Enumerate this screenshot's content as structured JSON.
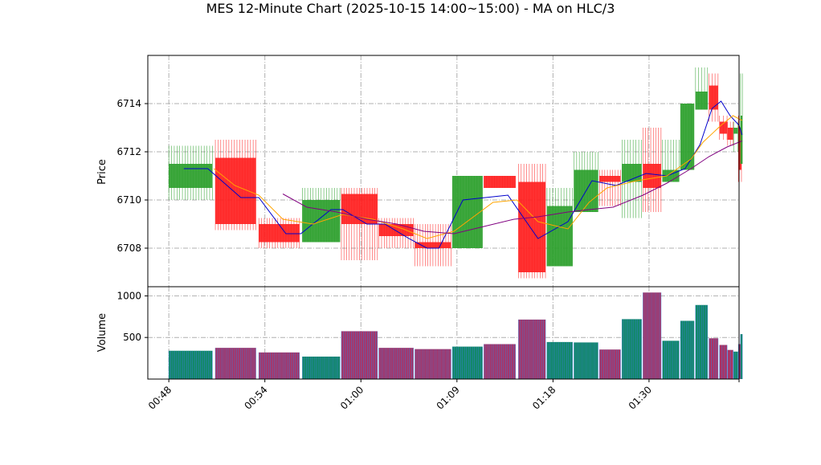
{
  "chart_data": {
    "type": "candlestick",
    "title": "MES 12-Minute Chart (2025-10-15 14:00~15:00) - MA on HLC/3",
    "price_panel": {
      "ylabel": "Price",
      "ylim": [
        6706.4,
        6716.0
      ],
      "yticks": [
        6708,
        6710,
        6712,
        6714
      ],
      "grid": true
    },
    "volume_panel": {
      "ylabel": "Volume",
      "ylim": [
        0,
        1110
      ],
      "yticks": [
        500,
        1000
      ],
      "grid": true
    },
    "x_axis": {
      "xlim": [
        -0.7,
        19.0
      ],
      "ticks": [
        {
          "label": "00:48",
          "pos": 0
        },
        {
          "label": "00:54",
          "pos": 3.2
        },
        {
          "label": "01:00",
          "pos": 6.4
        },
        {
          "label": "01:09",
          "pos": 9.6
        },
        {
          "label": "01:18",
          "pos": 12.8
        },
        {
          "label": "01:30",
          "pos": 16.0
        },
        {
          "label": "",
          "pos": 19.0
        }
      ]
    },
    "candles": [
      {
        "x": 0.0,
        "w": 1.45,
        "open": 6710.5,
        "high": 6712.25,
        "low": 6710.0,
        "close": 6711.5,
        "volume": 340
      },
      {
        "x": 1.55,
        "w": 1.35,
        "open": 6711.75,
        "high": 6712.5,
        "low": 6708.75,
        "close": 6709.0,
        "volume": 375
      },
      {
        "x": 3.0,
        "w": 1.35,
        "open": 6709.0,
        "high": 6709.25,
        "low": 6708.0,
        "close": 6708.25,
        "volume": 320
      },
      {
        "x": 4.45,
        "w": 1.25,
        "open": 6708.25,
        "high": 6710.5,
        "low": 6708.25,
        "close": 6710.0,
        "volume": 270
      },
      {
        "x": 5.75,
        "w": 1.2,
        "open": 6710.25,
        "high": 6710.5,
        "low": 6707.5,
        "close": 6709.0,
        "volume": 575
      },
      {
        "x": 7.0,
        "w": 1.15,
        "open": 6709.0,
        "high": 6709.25,
        "low": 6708.0,
        "close": 6708.5,
        "volume": 375
      },
      {
        "x": 8.2,
        "w": 1.2,
        "open": 6708.25,
        "high": 6709.0,
        "low": 6707.25,
        "close": 6708.0,
        "volume": 360
      },
      {
        "x": 9.45,
        "w": 1.0,
        "open": 6708.0,
        "high": 6711.0,
        "low": 6708.0,
        "close": 6711.0,
        "volume": 390
      },
      {
        "x": 10.5,
        "w": 1.05,
        "open": 6711.0,
        "high": 6711.0,
        "low": 6710.5,
        "close": 6710.5,
        "volume": 420
      },
      {
        "x": 11.65,
        "w": 0.9,
        "open": 6710.75,
        "high": 6711.5,
        "low": 6706.75,
        "close": 6707.0,
        "volume": 715
      },
      {
        "x": 12.6,
        "w": 0.85,
        "open": 6707.25,
        "high": 6710.5,
        "low": 6707.25,
        "close": 6709.75,
        "volume": 445
      },
      {
        "x": 13.5,
        "w": 0.8,
        "open": 6709.5,
        "high": 6712.0,
        "low": 6709.5,
        "close": 6711.25,
        "volume": 440
      },
      {
        "x": 14.35,
        "w": 0.7,
        "open": 6711.0,
        "high": 6711.25,
        "low": 6709.75,
        "close": 6710.75,
        "volume": 355
      },
      {
        "x": 15.1,
        "w": 0.65,
        "open": 6710.75,
        "high": 6712.5,
        "low": 6709.25,
        "close": 6711.5,
        "volume": 720
      },
      {
        "x": 15.8,
        "w": 0.6,
        "open": 6711.5,
        "high": 6713.0,
        "low": 6709.5,
        "close": 6710.5,
        "volume": 1040
      },
      {
        "x": 16.45,
        "w": 0.55,
        "open": 6710.75,
        "high": 6712.5,
        "low": 6710.75,
        "close": 6711.25,
        "volume": 460
      },
      {
        "x": 17.05,
        "w": 0.45,
        "open": 6711.25,
        "high": 6714.0,
        "low": 6711.25,
        "close": 6714.0,
        "volume": 700
      },
      {
        "x": 17.55,
        "w": 0.4,
        "open": 6713.75,
        "high": 6715.5,
        "low": 6713.75,
        "close": 6714.5,
        "volume": 890
      },
      {
        "x": 18.0,
        "w": 0.3,
        "open": 6714.75,
        "high": 6715.25,
        "low": 6713.25,
        "close": 6713.75,
        "volume": 490
      },
      {
        "x": 18.35,
        "w": 0.25,
        "open": 6713.25,
        "high": 6713.5,
        "low": 6712.5,
        "close": 6712.75,
        "volume": 410
      },
      {
        "x": 18.62,
        "w": 0.18,
        "open": 6713.0,
        "high": 6713.25,
        "low": 6712.25,
        "close": 6712.5,
        "volume": 350
      },
      {
        "x": 18.82,
        "w": 0.14,
        "open": 6712.75,
        "high": 6713.25,
        "low": 6712.0,
        "close": 6713.0,
        "volume": 330
      },
      {
        "x": 18.98,
        "w": 0.1,
        "open": 6713.0,
        "high": 6713.5,
        "low": 6710.75,
        "close": 6711.25,
        "volume": 420
      },
      {
        "x": 19.05,
        "w": 0.06,
        "open": 6711.5,
        "high": 6715.25,
        "low": 6711.5,
        "close": 6713.5,
        "volume": 540
      }
    ],
    "ma_lines": [
      {
        "color": "#0000cc",
        "points": [
          [
            0.5,
            6711.3
          ],
          [
            1.3,
            6711.3
          ],
          [
            2.4,
            6710.1
          ],
          [
            3.0,
            6710.1
          ],
          [
            3.9,
            6708.6
          ],
          [
            4.4,
            6708.6
          ],
          [
            5.4,
            6709.6
          ],
          [
            5.8,
            6709.6
          ],
          [
            6.6,
            6709.0
          ],
          [
            7.2,
            6709.0
          ],
          [
            8.0,
            6708.4
          ],
          [
            8.6,
            6708.0
          ],
          [
            9.0,
            6708.0
          ],
          [
            9.8,
            6710.0
          ],
          [
            11.3,
            6710.2
          ],
          [
            12.3,
            6708.4
          ],
          [
            13.3,
            6709.1
          ],
          [
            14.1,
            6710.8
          ],
          [
            14.9,
            6710.6
          ],
          [
            15.9,
            6711.1
          ],
          [
            16.6,
            6711.0
          ],
          [
            17.2,
            6711.3
          ],
          [
            17.7,
            6712.3
          ],
          [
            18.1,
            6713.8
          ],
          [
            18.4,
            6714.1
          ],
          [
            18.7,
            6713.5
          ],
          [
            19.0,
            6713.1
          ],
          [
            19.1,
            6712.7
          ]
        ]
      },
      {
        "color": "#ffa500",
        "points": [
          [
            1.5,
            6711.3
          ],
          [
            2.2,
            6710.6
          ],
          [
            3.0,
            6710.2
          ],
          [
            3.8,
            6709.2
          ],
          [
            4.8,
            6709.0
          ],
          [
            5.8,
            6709.4
          ],
          [
            6.8,
            6709.2
          ],
          [
            7.8,
            6708.8
          ],
          [
            8.6,
            6708.4
          ],
          [
            9.5,
            6708.7
          ],
          [
            10.8,
            6709.9
          ],
          [
            11.6,
            6710.0
          ],
          [
            12.3,
            6709.1
          ],
          [
            13.3,
            6708.8
          ],
          [
            14.0,
            6709.9
          ],
          [
            14.6,
            6710.5
          ],
          [
            15.6,
            6710.8
          ],
          [
            16.6,
            6711.0
          ],
          [
            17.4,
            6711.7
          ],
          [
            17.8,
            6712.4
          ],
          [
            18.4,
            6713.1
          ],
          [
            18.8,
            6713.5
          ],
          [
            19.1,
            6713.3
          ]
        ]
      },
      {
        "color": "#800080",
        "points": [
          [
            3.8,
            6710.25
          ],
          [
            4.6,
            6709.7
          ],
          [
            5.6,
            6709.5
          ],
          [
            6.6,
            6709.2
          ],
          [
            7.6,
            6709.0
          ],
          [
            8.5,
            6708.7
          ],
          [
            9.5,
            6708.6
          ],
          [
            10.5,
            6708.9
          ],
          [
            11.5,
            6709.2
          ],
          [
            12.3,
            6709.3
          ],
          [
            13.3,
            6709.5
          ],
          [
            14.0,
            6709.6
          ],
          [
            14.8,
            6709.7
          ],
          [
            15.8,
            6710.2
          ],
          [
            16.6,
            6710.7
          ],
          [
            17.4,
            6711.3
          ],
          [
            18.0,
            6711.8
          ],
          [
            18.6,
            6712.2
          ],
          [
            19.1,
            6712.45
          ]
        ]
      }
    ]
  }
}
